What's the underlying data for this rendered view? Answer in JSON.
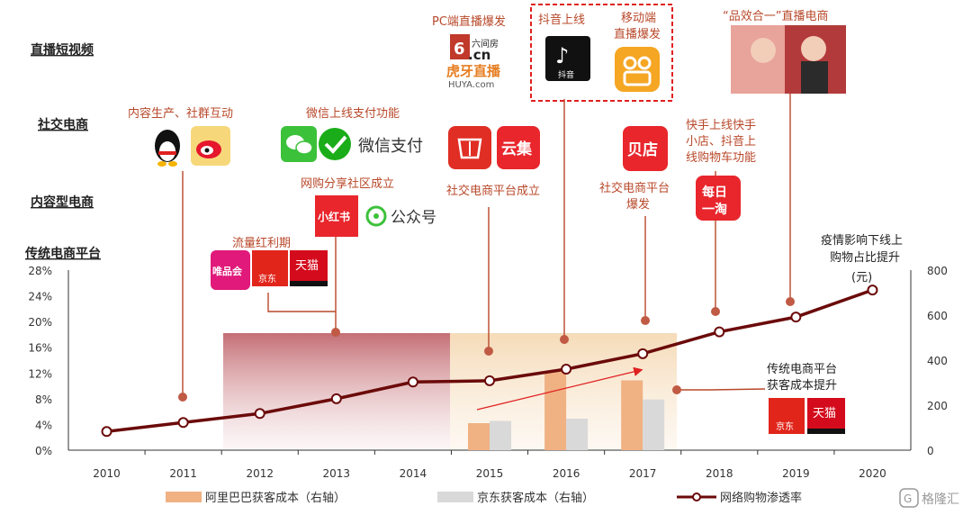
{
  "row_labels": {
    "live_video": "直播短视频",
    "social": "社交电商",
    "content": "内容型电商",
    "traditional": "传统电商平台"
  },
  "annotations": {
    "pc_live": "PC端直播爆发",
    "douyin_online": "抖音上线",
    "mobile_live_1": "移动端",
    "mobile_live_2": "直播爆发",
    "pin_xiao_he_yi": "“品效合一”直播电商",
    "content_social": "内容生产、社群互动",
    "wechat_pay_online": "微信上线支付功能",
    "wechat_pay": "微信支付",
    "share_community": "网购分享社区成立",
    "gongzhonghao": "公众号",
    "social_platform_founded": "社交电商平台成立",
    "social_platform_boom_1": "社交电商平台",
    "social_platform_boom_2": "爆发",
    "kuaishou_1": "快手上线快手",
    "kuaishou_2": "小店、抖音上",
    "kuaishou_3": "线购物车功能",
    "traffic_dividend": "流量红利期",
    "epidemic_1": "疫情影响下线上",
    "epidemic_2": "购物占比提升",
    "unit_yuan": "(元)",
    "acq_cost_1": "传统电商平台",
    "acq_cost_2": "获客成本提升"
  },
  "logos": {
    "liuJianFang": "六间房",
    "cn": ".cn",
    "huya": "虎牙直播",
    "huya_en": "HUYA.com",
    "douyin": "抖音",
    "vipshop": "唯品会",
    "jd": "京东",
    "tmall": "天猫",
    "xiaohongshu": "小红书",
    "yunji": "云集",
    "beidian": "贝店",
    "meiri_1": "每日",
    "meiri_2": "一淘"
  },
  "watermark": "格隆汇",
  "colors": {
    "line": "#6b0a0a",
    "alibaba_bar": "#f0b183",
    "jd_bar": "#d9d9d9",
    "annotation": "#b8482a",
    "dashed_box": "#e02020"
  },
  "chart_data": {
    "type": "bar+line",
    "categories": [
      "2010",
      "2011",
      "2012",
      "2013",
      "2014",
      "2015",
      "2016",
      "2017",
      "2018",
      "2019",
      "2020"
    ],
    "y_left": {
      "ticks": [
        "0%",
        "4%",
        "8%",
        "12%",
        "16%",
        "20%",
        "24%",
        "28%"
      ],
      "range": [
        0,
        28
      ]
    },
    "y_right": {
      "ticks": [
        "0",
        "200",
        "400",
        "600",
        "800"
      ],
      "range": [
        0,
        800
      ]
    },
    "series": [
      {
        "name": "阿里巴巴获客成本（右轴）",
        "type": "bar",
        "axis": "right",
        "values": [
          null,
          null,
          null,
          null,
          null,
          120,
          350,
          310,
          null,
          null,
          null
        ]
      },
      {
        "name": "京东获客成本（右轴）",
        "type": "bar",
        "axis": "right",
        "values": [
          null,
          null,
          null,
          null,
          null,
          130,
          140,
          225,
          null,
          null,
          null
        ]
      },
      {
        "name": "网络购物渗透率",
        "type": "line",
        "axis": "left",
        "values": [
          2.9,
          4.3,
          5.7,
          8.0,
          10.6,
          10.8,
          12.6,
          15.0,
          18.4,
          20.7,
          24.9
        ]
      }
    ]
  }
}
